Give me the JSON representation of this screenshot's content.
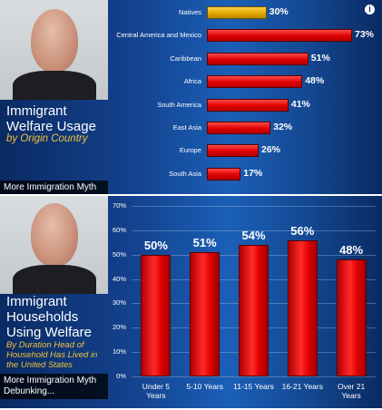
{
  "top_panel": {
    "title_line1": "Immigrant",
    "title_line2": "Welfare Usage",
    "subtitle": "by Origin Country",
    "caption": "More Immigration Myth",
    "info_icon": "info-icon"
  },
  "bottom_panel": {
    "title_line1": "Immigrant",
    "title_line2": "Households",
    "title_line3": "Using Welfare",
    "subtitle_line1": "By Duration Head of",
    "subtitle_line2": "Household Has Lived in",
    "subtitle_line3": "the United States",
    "caption_line1": "More Immigration Myth",
    "caption_line2": "Debunking..."
  },
  "colors": {
    "bar_red": "#e00000",
    "bar_gold": "#e3a800",
    "subtitle_gold": "#f0c23a",
    "panel_blue": "#14428e"
  },
  "chart_data": [
    {
      "type": "bar",
      "orientation": "horizontal",
      "categories": [
        "Natives",
        "Central America and Mexico",
        "Caribbean",
        "Africa",
        "South America",
        "East Asia",
        "Europe",
        "South Asia"
      ],
      "values": [
        30,
        73,
        51,
        48,
        41,
        32,
        26,
        17
      ],
      "value_labels": [
        "30%",
        "73%",
        "51%",
        "48%",
        "41%",
        "32%",
        "26%",
        "17%"
      ],
      "highlight_category": "Natives",
      "xlim": [
        0,
        80
      ]
    },
    {
      "type": "bar",
      "orientation": "vertical",
      "categories": [
        "Under 5 Years",
        "5-10 Years",
        "11-15 Years",
        "16-21 Years",
        "Over 21 Years"
      ],
      "category_lines": [
        [
          "Under 5",
          "Years"
        ],
        [
          "5-10 Years"
        ],
        [
          "11-15 Years"
        ],
        [
          "16-21 Years"
        ],
        [
          "Over 21",
          "Years"
        ]
      ],
      "values": [
        50,
        51,
        54,
        56,
        48
      ],
      "value_labels": [
        "50%",
        "51%",
        "54%",
        "56%",
        "48%"
      ],
      "y_ticks": [
        "0%",
        "10%",
        "20%",
        "30%",
        "40%",
        "50%",
        "60%",
        "70%"
      ],
      "ylim": [
        0,
        70
      ],
      "grid": true
    }
  ]
}
